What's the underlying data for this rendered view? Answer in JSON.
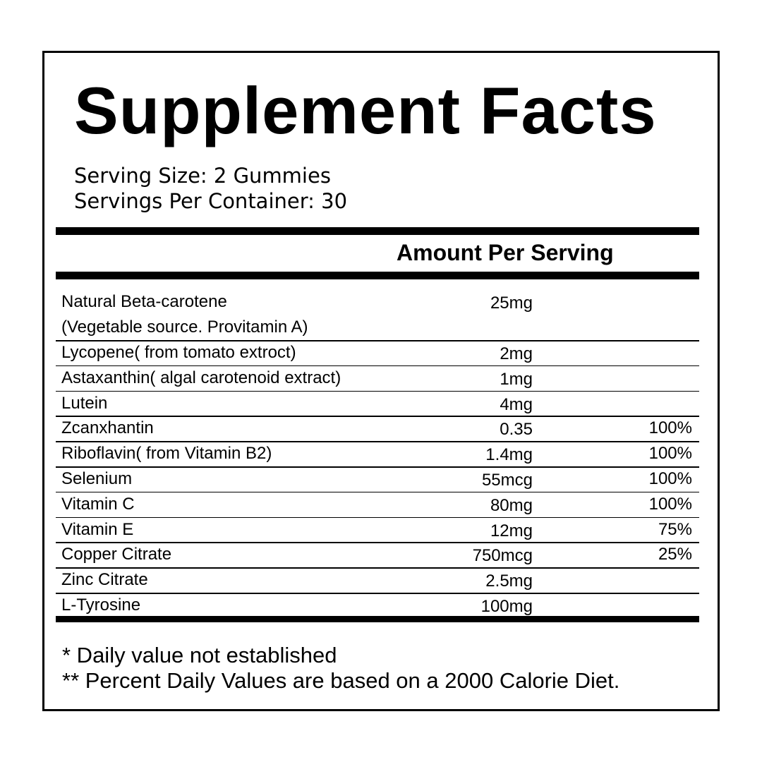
{
  "header": {
    "title": "Supplement Facts",
    "serving_size": "Serving Size: 2 Gummies",
    "servings_per_container": "Servings Per Container: 30"
  },
  "table": {
    "column_header": "Amount Per Serving",
    "rows": [
      {
        "name": "Natural Beta-carotene",
        "note": "(Vegetable source. Provitamin A)",
        "amount": "25mg"
      },
      {
        "name": "Lycopene( from tomato extroct)",
        "amount": "2mg"
      },
      {
        "name": "Astaxanthin( algal carotenoid extract)",
        "amount": "1mg"
      },
      {
        "name": "Lutein",
        "amount": "4mg"
      },
      {
        "name": "Zcanxhantin",
        "amount": "0.35",
        "dv": "100%"
      },
      {
        "name": "Riboflavin( from Vitamin B2)",
        "amount": "1.4mg",
        "dv": "100%"
      },
      {
        "name": "Selenium",
        "amount": "55mcg",
        "dv": "100%"
      },
      {
        "name": "Vitamin C",
        "amount": "80mg",
        "dv": "100%"
      },
      {
        "name": "Vitamin E",
        "amount": "12mg",
        "dv": "75%"
      },
      {
        "name": "Copper Citrate",
        "amount": "750mcg",
        "dv": "25%"
      },
      {
        "name": "Zinc Citrate",
        "amount": "2.5mg"
      },
      {
        "name": "L-Tyrosine",
        "amount": "100mg"
      }
    ]
  },
  "footer": {
    "note_1": "* Daily value not established",
    "note_2": "** Percent Daily Values are based on a 2000 Calorie Diet."
  }
}
